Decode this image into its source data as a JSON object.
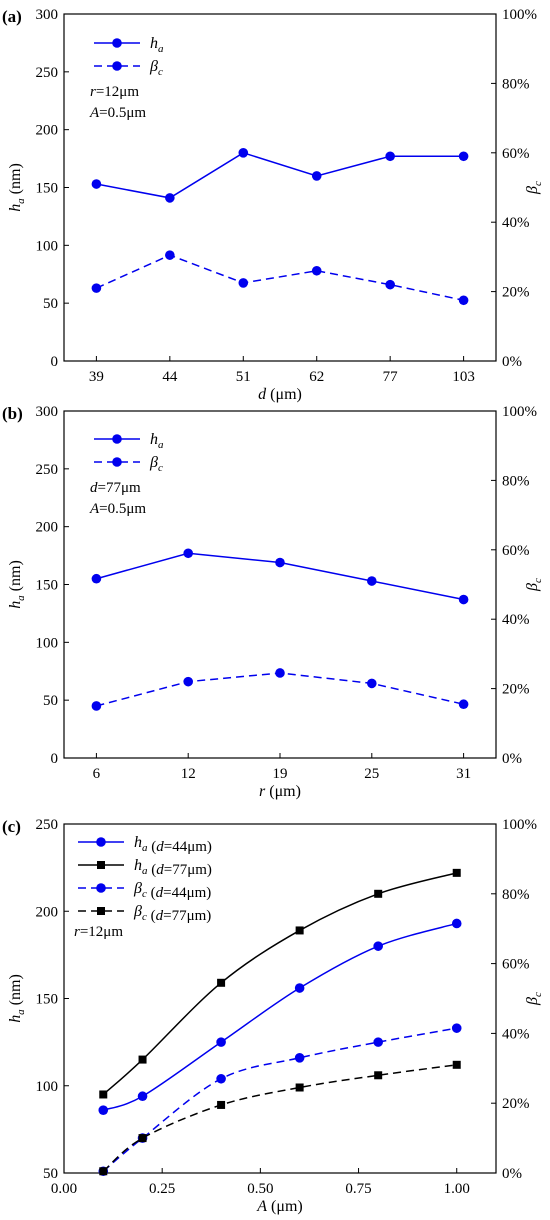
{
  "colors": {
    "blue": "#0000ee",
    "black": "#000000"
  },
  "chart_data": [
    {
      "type": "line",
      "panel_label": "(a)",
      "x_scale": "category",
      "x": [
        "39",
        "44",
        "51",
        "62",
        "77",
        "103"
      ],
      "xlabel_italic": "d",
      "xlabel_unit": " (μm)",
      "ylim": [
        0,
        300
      ],
      "yticks": [
        0,
        50,
        100,
        150,
        200,
        250,
        300
      ],
      "ylabel_main": "h",
      "ylabel_sub": "a",
      "ylabel_unit": " (nm)",
      "y2lim": [
        0,
        100
      ],
      "y2ticks": [
        "0%",
        "20%",
        "40%",
        "60%",
        "80%",
        "100%"
      ],
      "y2label_main": "β",
      "y2label_sub": "c",
      "series": [
        {
          "name": "h",
          "name_sub": "a",
          "name_suffix": "",
          "axis": "left",
          "values": [
            153,
            141,
            180,
            160,
            177,
            177
          ],
          "color": "#0000ee",
          "dash": "solid",
          "marker": "circle"
        },
        {
          "name": "β",
          "name_sub": "c",
          "name_suffix": "",
          "axis": "right",
          "values": [
            21,
            30.5,
            22.5,
            26,
            22,
            17.5
          ],
          "color": "#0000ee",
          "dash": "dashed",
          "marker": "circle"
        }
      ],
      "annotations": [
        {
          "var": "r",
          "rest": "=12μm"
        },
        {
          "var": "A",
          "rest": "=0.5μm"
        }
      ]
    },
    {
      "type": "line",
      "panel_label": "(b)",
      "x_scale": "category",
      "x": [
        "6",
        "12",
        "19",
        "25",
        "31"
      ],
      "xlabel_italic": "r",
      "xlabel_unit": " (μm)",
      "ylim": [
        0,
        300
      ],
      "yticks": [
        0,
        50,
        100,
        150,
        200,
        250,
        300
      ],
      "ylabel_main": "h",
      "ylabel_sub": "a",
      "ylabel_unit": " (nm)",
      "y2lim": [
        0,
        100
      ],
      "y2ticks": [
        "0%",
        "20%",
        "40%",
        "60%",
        "80%",
        "100%"
      ],
      "y2label_main": "β",
      "y2label_sub": "c",
      "series": [
        {
          "name": "h",
          "name_sub": "a",
          "name_suffix": "",
          "axis": "left",
          "values": [
            155,
            177,
            169,
            153,
            137
          ],
          "color": "#0000ee",
          "dash": "solid",
          "marker": "circle"
        },
        {
          "name": "β",
          "name_sub": "c",
          "name_suffix": "",
          "axis": "right",
          "values": [
            15,
            22,
            24.5,
            21.5,
            15.5
          ],
          "color": "#0000ee",
          "dash": "dashed",
          "marker": "circle"
        }
      ],
      "annotations": [
        {
          "var": "d",
          "rest": "=77μm"
        },
        {
          "var": "A",
          "rest": "=0.5μm"
        }
      ]
    },
    {
      "type": "line",
      "panel_label": "(c)",
      "x_scale": "linear",
      "x": [
        0.1,
        0.2,
        0.4,
        0.6,
        0.8,
        1.0
      ],
      "xlim": [
        0,
        1.1
      ],
      "xticks": [
        "0.00",
        "0.25",
        "0.50",
        "0.75",
        "1.00"
      ],
      "xlabel_italic": "A",
      "xlabel_unit": " (μm)",
      "ylim": [
        50,
        250
      ],
      "yticks": [
        50,
        100,
        150,
        200,
        250
      ],
      "ylabel_main": "h",
      "ylabel_sub": "a",
      "ylabel_unit": " (nm)",
      "y2lim": [
        0,
        100
      ],
      "y2ticks": [
        "0%",
        "20%",
        "40%",
        "60%",
        "80%",
        "100%"
      ],
      "y2label_main": "β",
      "y2label_sub": "c",
      "series": [
        {
          "name": "h",
          "name_sub": "a",
          "name_suffix": "(d=44μm)",
          "axis": "left",
          "values": [
            86,
            94,
            125,
            156,
            180,
            193
          ],
          "color": "#0000ee",
          "dash": "solid",
          "marker": "circle"
        },
        {
          "name": "h",
          "name_sub": "a",
          "name_suffix": "(d=77μm)",
          "axis": "left",
          "values": [
            95,
            115,
            159,
            189,
            210,
            222
          ],
          "color": "#000000",
          "dash": "solid",
          "marker": "square"
        },
        {
          "name": "β",
          "name_sub": "c",
          "name_suffix": "(d=44μm)",
          "axis": "right",
          "values": [
            0.5,
            10,
            27,
            33,
            37.5,
            41.5
          ],
          "color": "#0000ee",
          "dash": "dashed",
          "marker": "circle"
        },
        {
          "name": "β",
          "name_sub": "c",
          "name_suffix": "(d=77μm)",
          "axis": "right",
          "values": [
            0.5,
            10,
            19.5,
            24.5,
            28,
            31
          ],
          "color": "#000000",
          "dash": "dashed",
          "marker": "square"
        }
      ],
      "annotations": [
        {
          "var": "r",
          "rest": "=12μm"
        }
      ]
    }
  ]
}
